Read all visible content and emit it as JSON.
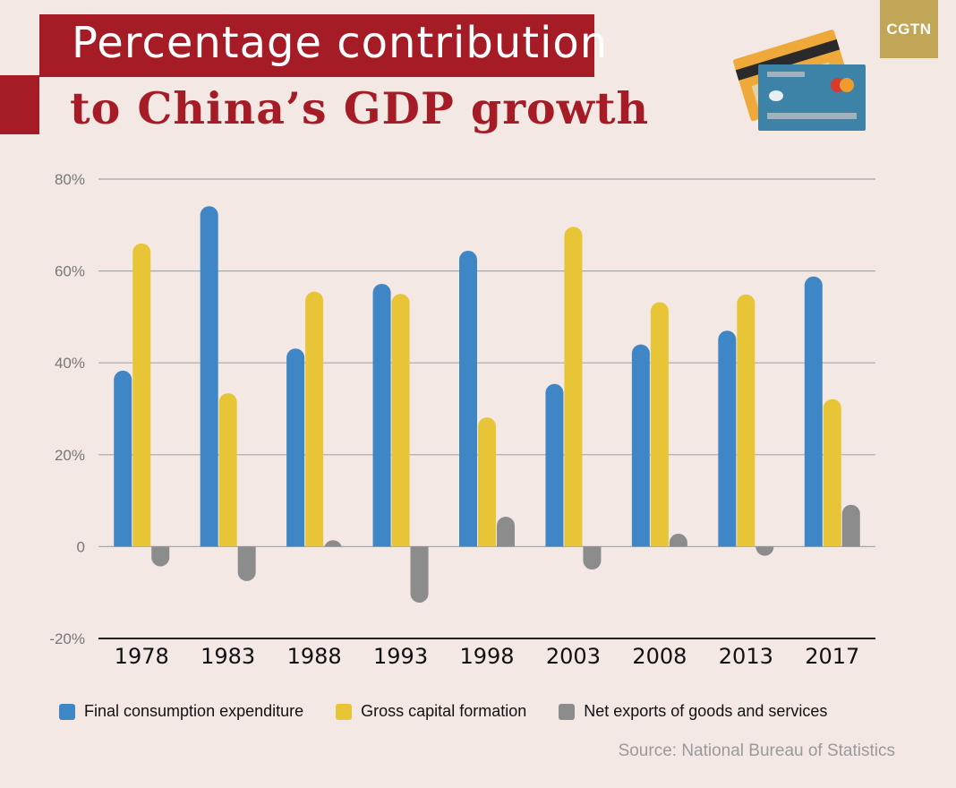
{
  "header": {
    "title_line1": "Percentage contribution",
    "title_line2": "to China’s GDP growth",
    "logo_text": "CGTN",
    "icon": "credit-cards-icon"
  },
  "colors": {
    "background": "#f3e8e4",
    "accent_red": "#a61c26",
    "logo_gold": "#c0a656",
    "consumption": "#3e86c6",
    "capital": "#e8c437",
    "net_exports": "#8c8c8c"
  },
  "source_text": "Source: National Bureau of Statistics",
  "chart_data": {
    "type": "bar",
    "title": "",
    "xlabel": "",
    "ylabel": "",
    "ylim": [
      -20,
      80
    ],
    "yticks": [
      {
        "value": 80,
        "label": "80%"
      },
      {
        "value": 60,
        "label": "60%"
      },
      {
        "value": 40,
        "label": "40%"
      },
      {
        "value": 20,
        "label": "20%"
      },
      {
        "value": 0,
        "label": "0"
      },
      {
        "value": -20,
        "label": "-20%"
      }
    ],
    "grid": true,
    "legend_position": "bottom",
    "categories": [
      "1978",
      "1983",
      "1988",
      "1993",
      "1998",
      "2003",
      "2008",
      "2013",
      "2017"
    ],
    "series": [
      {
        "name": "Final consumption expenditure",
        "color": "#3e86c6",
        "values": [
          38.3,
          74.1,
          43.1,
          57.2,
          64.4,
          35.4,
          44.0,
          47.0,
          58.8
        ]
      },
      {
        "name": "Gross capital formation",
        "color": "#e8c437",
        "values": [
          66.0,
          33.4,
          55.5,
          55.0,
          28.1,
          69.6,
          53.2,
          54.9,
          32.1
        ]
      },
      {
        "name": "Net exports of goods and services",
        "color": "#8c8c8c",
        "values": [
          -4.3,
          -7.5,
          1.4,
          -12.2,
          6.5,
          -5.0,
          2.8,
          -2.0,
          9.1
        ]
      }
    ]
  }
}
